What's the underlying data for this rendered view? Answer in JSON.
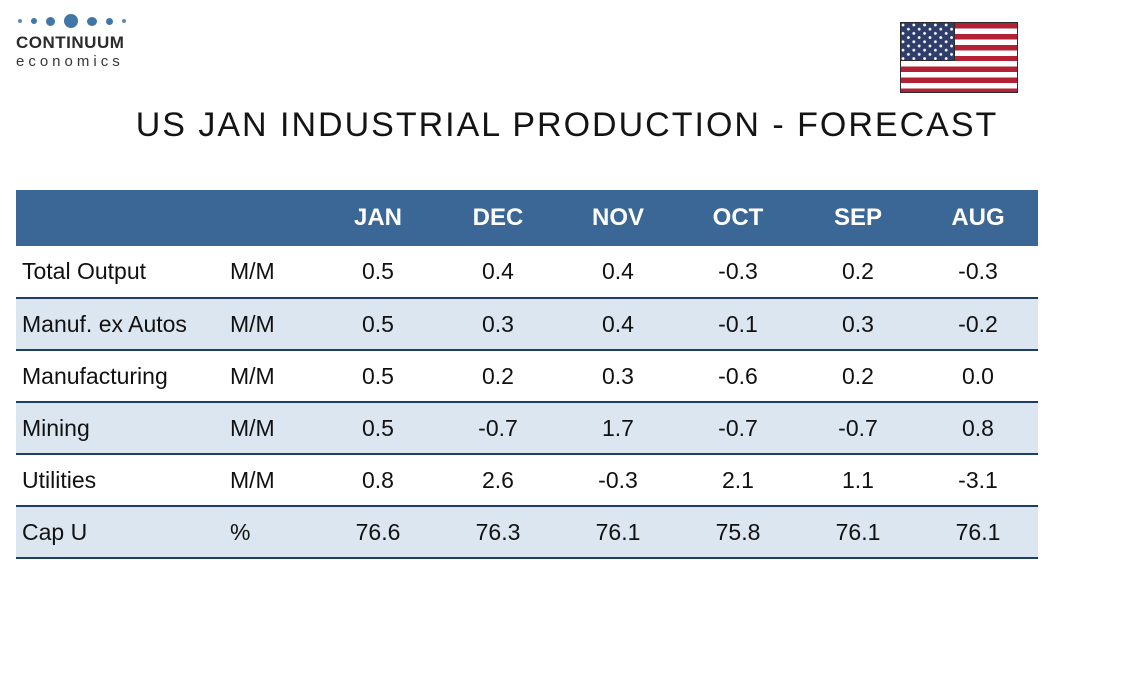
{
  "logo": {
    "name": "CONTINUUM",
    "subtitle": "economics"
  },
  "title": "US JAN INDUSTRIAL PRODUCTION - FORECAST",
  "flag": {
    "icon": "us-flag"
  },
  "colors": {
    "header_bg": "#3A6795",
    "header_text": "#FFFFFF",
    "row_alt_bg": "#DCE6F1",
    "row_border": "#1F4066",
    "logo_dot_blue": "#4177A6",
    "flag_red": "#B22234",
    "flag_blue": "#2E3D6B"
  },
  "table": {
    "columns": [
      "",
      "",
      "JAN",
      "DEC",
      "NOV",
      "OCT",
      "SEP",
      "AUG"
    ],
    "rows": [
      {
        "label": "Total Output",
        "unit": "M/M",
        "values": [
          "0.5",
          "0.4",
          "0.4",
          "-0.3",
          "0.2",
          "-0.3"
        ]
      },
      {
        "label": "Manuf. ex Autos",
        "unit": "M/M",
        "values": [
          "0.5",
          "0.3",
          "0.4",
          "-0.1",
          "0.3",
          "-0.2"
        ]
      },
      {
        "label": "Manufacturing",
        "unit": "M/M",
        "values": [
          "0.5",
          "0.2",
          "0.3",
          "-0.6",
          "0.2",
          "0.0"
        ]
      },
      {
        "label": "Mining",
        "unit": "M/M",
        "values": [
          "0.5",
          "-0.7",
          "1.7",
          "-0.7",
          "-0.7",
          "0.8"
        ]
      },
      {
        "label": "Utilities",
        "unit": "M/M",
        "values": [
          "0.8",
          "2.6",
          "-0.3",
          "2.1",
          "1.1",
          "-3.1"
        ]
      },
      {
        "label": "Cap U",
        "unit": "%",
        "values": [
          "76.6",
          "76.3",
          "76.1",
          "75.8",
          "76.1",
          "76.1"
        ]
      }
    ]
  },
  "chart_data": {
    "type": "table",
    "title": "US JAN INDUSTRIAL PRODUCTION - FORECAST",
    "categories": [
      "JAN",
      "DEC",
      "NOV",
      "OCT",
      "SEP",
      "AUG"
    ],
    "series": [
      {
        "name": "Total Output",
        "unit": "M/M",
        "values": [
          0.5,
          0.4,
          0.4,
          -0.3,
          0.2,
          -0.3
        ]
      },
      {
        "name": "Manuf. ex Autos",
        "unit": "M/M",
        "values": [
          0.5,
          0.3,
          0.4,
          -0.1,
          0.3,
          -0.2
        ]
      },
      {
        "name": "Manufacturing",
        "unit": "M/M",
        "values": [
          0.5,
          0.2,
          0.3,
          -0.6,
          0.2,
          0.0
        ]
      },
      {
        "name": "Mining",
        "unit": "M/M",
        "values": [
          0.5,
          -0.7,
          1.7,
          -0.7,
          -0.7,
          0.8
        ]
      },
      {
        "name": "Utilities",
        "unit": "M/M",
        "values": [
          0.8,
          2.6,
          -0.3,
          2.1,
          1.1,
          -3.1
        ]
      },
      {
        "name": "Cap U",
        "unit": "%",
        "values": [
          76.6,
          76.3,
          76.1,
          75.8,
          76.1,
          76.1
        ]
      }
    ]
  }
}
